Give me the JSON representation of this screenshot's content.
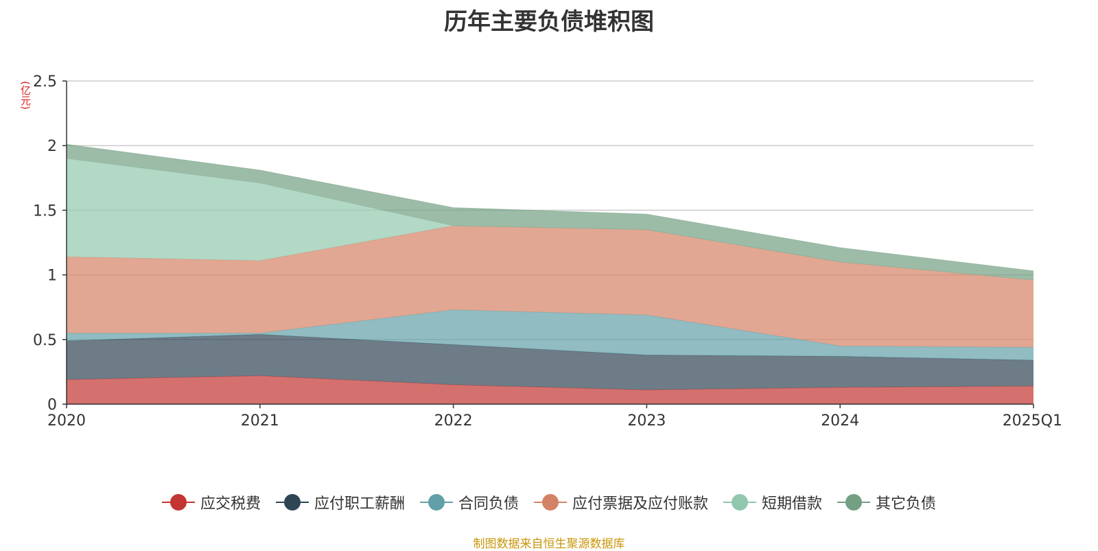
{
  "chart_data": {
    "type": "area",
    "stacked": true,
    "title": "历年主要负债堆积图",
    "unit_label": "(亿元)",
    "categories": [
      "2020",
      "2021",
      "2022",
      "2023",
      "2024",
      "2025Q1"
    ],
    "y_ticks": [
      "0",
      "0.5",
      "1",
      "1.5",
      "2",
      "2.5"
    ],
    "ylim": [
      0,
      2.5
    ],
    "grid": true,
    "legend_position": "bottom",
    "series": [
      {
        "name": "应交税费",
        "color": "#c23531",
        "values": [
          0.19,
          0.22,
          0.15,
          0.11,
          0.13,
          0.14
        ]
      },
      {
        "name": "应付职工薪酬",
        "color": "#2f4554",
        "values": [
          0.3,
          0.32,
          0.31,
          0.27,
          0.24,
          0.2
        ]
      },
      {
        "name": "合同负债",
        "color": "#61a0a8",
        "values": [
          0.06,
          0.01,
          0.27,
          0.31,
          0.08,
          0.1
        ]
      },
      {
        "name": "应付票据及应付账款",
        "color": "#d48265",
        "values": [
          0.59,
          0.56,
          0.65,
          0.66,
          0.65,
          0.52
        ]
      },
      {
        "name": "短期借款",
        "color": "#91c7ae",
        "values": [
          0.76,
          0.6,
          0.0,
          0.0,
          0.0,
          0.0
        ]
      },
      {
        "name": "其它负债",
        "color": "#749f83",
        "values": [
          0.11,
          0.1,
          0.14,
          0.12,
          0.11,
          0.07
        ]
      }
    ]
  },
  "source_note": "制图数据来自恒生聚源数据库"
}
